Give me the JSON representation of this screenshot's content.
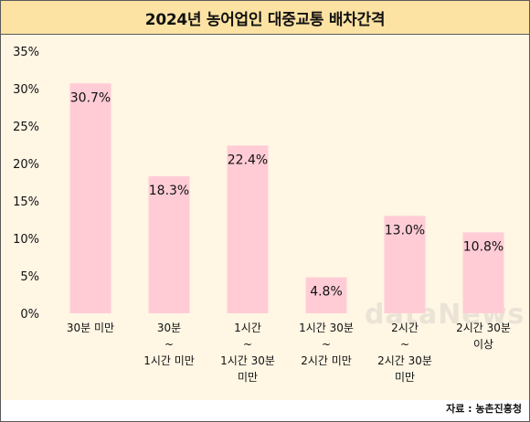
{
  "title": "2024년 농어업인 대중교통 배차간격",
  "source": "자료 : 농촌진흥청",
  "watermark": "dataNews",
  "colors": {
    "title_bg": "#fde3a3",
    "plot_bg": "#fff6e4",
    "bar": "#ffccd6",
    "text": "#111111"
  },
  "chart_data": {
    "type": "bar",
    "categories": [
      [
        "30분 미만"
      ],
      [
        "30분",
        "~",
        "1시간 미만"
      ],
      [
        "1시간",
        "~",
        "1시간 30분",
        "미만"
      ],
      [
        "1시간 30분",
        "~",
        "2시간 미만"
      ],
      [
        "2시간",
        "~",
        "2시간 30분",
        "미만"
      ],
      [
        "2시간 30분",
        "이상"
      ]
    ],
    "values": [
      30.7,
      18.3,
      22.4,
      4.8,
      13.0,
      10.8
    ],
    "data_labels": [
      "30.7%",
      "18.3%",
      "22.4%",
      "4.8%",
      "13.0%",
      "10.8%"
    ],
    "ylim": [
      0,
      35
    ],
    "yticks": [
      0,
      5,
      10,
      15,
      20,
      25,
      30,
      35
    ],
    "ytick_labels": [
      "0%",
      "5%",
      "10%",
      "15%",
      "20%",
      "25%",
      "30%",
      "35%"
    ],
    "grid": false,
    "legend": "none"
  }
}
